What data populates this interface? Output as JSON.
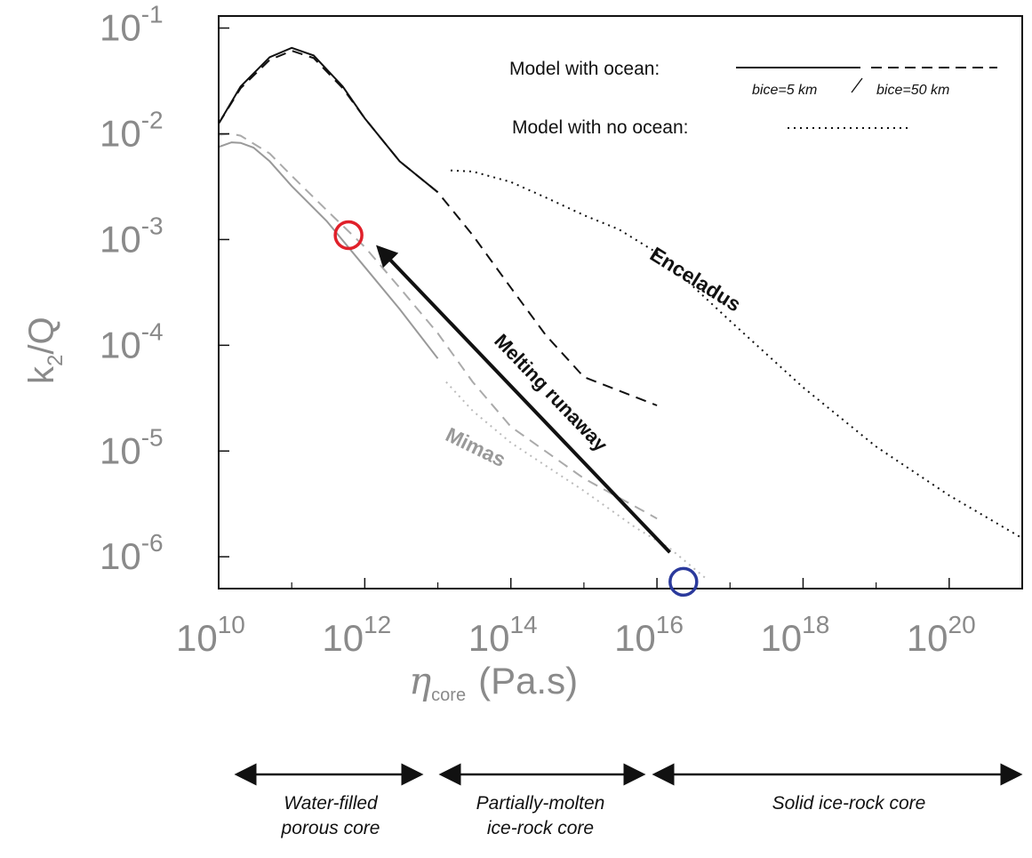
{
  "chart_data": {
    "type": "line",
    "x_scale": "log",
    "y_scale": "log",
    "xlim": [
      10000000000.0,
      1e+21
    ],
    "ylim": [
      5e-07,
      0.13
    ],
    "x_ticks": [
      {
        "value": 10000000000.0,
        "base": "10",
        "exp": "10"
      },
      {
        "value": 1000000000000.0,
        "base": "10",
        "exp": "12"
      },
      {
        "value": 100000000000000.0,
        "base": "10",
        "exp": "14"
      },
      {
        "value": 1e+16,
        "base": "10",
        "exp": "16"
      },
      {
        "value": 1e+18,
        "base": "10",
        "exp": "18"
      },
      {
        "value": 1e+20,
        "base": "10",
        "exp": "20"
      }
    ],
    "y_ticks": [
      {
        "value": 0.1,
        "base": "10",
        "exp": "-1"
      },
      {
        "value": 0.01,
        "base": "10",
        "exp": "-2"
      },
      {
        "value": 0.001,
        "base": "10",
        "exp": "-3"
      },
      {
        "value": 0.0001,
        "base": "10",
        "exp": "-4"
      },
      {
        "value": 1e-05,
        "base": "10",
        "exp": "-5"
      },
      {
        "value": 1e-06,
        "base": "10",
        "exp": "-6"
      }
    ],
    "xlabel": {
      "symbol": "η",
      "sub": "core",
      "unit": "(Pa.s)"
    },
    "ylabel": {
      "main": "k",
      "sub": "2",
      "rest": "/Q"
    },
    "grid": false,
    "legend": {
      "ocean_label": "Model with ocean:",
      "ice5_label": "bice=5 km",
      "ice50_label": "bice=50 km",
      "no_ocean_label": "Model with  no ocean:"
    },
    "series": [
      {
        "name": "Enceladus ocean bice=5 km",
        "color": "#111111",
        "dash": "solid",
        "points": [
          [
            10000000000.0,
            0.0125
          ],
          [
            20000000000.0,
            0.028
          ],
          [
            50000000000.0,
            0.053
          ],
          [
            100000000000.0,
            0.065
          ],
          [
            200000000000.0,
            0.055
          ],
          [
            500000000000.0,
            0.028
          ],
          [
            1000000000000.0,
            0.014
          ],
          [
            3000000000000.0,
            0.0055
          ],
          [
            10000000000000.0,
            0.0028
          ]
        ]
      },
      {
        "name": "Enceladus ocean bice=50 km",
        "color": "#111111",
        "dash": "dashed",
        "points": [
          [
            10000000000.0,
            0.0125
          ],
          [
            20000000000.0,
            0.027
          ],
          [
            50000000000.0,
            0.05
          ],
          [
            100000000000.0,
            0.061
          ],
          [
            200000000000.0,
            0.052
          ],
          [
            500000000000.0,
            0.027
          ],
          [
            1000000000000.0,
            0.014
          ],
          [
            3000000000000.0,
            0.0055
          ],
          [
            10000000000000.0,
            0.0028
          ],
          [
            30000000000000.0,
            0.0011
          ],
          [
            100000000000000.0,
            0.00035
          ],
          [
            300000000000000.0,
            0.000125
          ],
          [
            1000000000000000.0,
            5e-05
          ],
          [
            1e+16,
            2.7e-05
          ]
        ]
      },
      {
        "name": "Enceladus no ocean",
        "color": "#111111",
        "dash": "dotted",
        "points": [
          [
            15000000000000.0,
            0.0045
          ],
          [
            30000000000000.0,
            0.0044
          ],
          [
            100000000000000.0,
            0.0035
          ],
          [
            300000000000000.0,
            0.0025
          ],
          [
            1000000000000000.0,
            0.0017
          ],
          [
            3000000000000000.0,
            0.00125
          ],
          [
            1e+16,
            0.00075
          ],
          [
            3e+16,
            0.00037
          ],
          [
            1e+17,
            0.00017
          ],
          [
            1e+18,
            4e-05
          ],
          [
            1e+19,
            1.1e-05
          ],
          [
            1e+20,
            3.8e-06
          ],
          [
            1e+21,
            1.5e-06
          ]
        ]
      },
      {
        "name": "Mimas ocean bice=5 km",
        "color": "#999999",
        "dash": "solid",
        "points": [
          [
            10000000000.0,
            0.0075
          ],
          [
            15000000000.0,
            0.0083
          ],
          [
            20000000000.0,
            0.0082
          ],
          [
            30000000000.0,
            0.0074
          ],
          [
            50000000000.0,
            0.0055
          ],
          [
            100000000000.0,
            0.0032
          ],
          [
            300000000000.0,
            0.0015
          ],
          [
            1000000000000.0,
            0.00055
          ],
          [
            3000000000000.0,
            0.00022
          ],
          [
            10000000000000.0,
            7.5e-05
          ]
        ]
      },
      {
        "name": "Mimas ocean bice=50 km",
        "color": "#aaaaaa",
        "dash": "dashed",
        "points": [
          [
            10000000000.0,
            0.0098
          ],
          [
            15000000000.0,
            0.01
          ],
          [
            20000000000.0,
            0.0096
          ],
          [
            50000000000.0,
            0.0065
          ],
          [
            100000000000.0,
            0.004
          ],
          [
            300000000000.0,
            0.0019
          ],
          [
            1000000000000.0,
            0.00085
          ],
          [
            3000000000000.0,
            0.00035
          ],
          [
            10000000000000.0,
            0.00013
          ],
          [
            30000000000000.0,
            4.5e-05
          ],
          [
            100000000000000.0,
            1.7e-05
          ],
          [
            1000000000000000.0,
            5.5e-06
          ],
          [
            1e+16,
            2.3e-06
          ]
        ]
      },
      {
        "name": "Mimas no ocean",
        "color": "#bbbbbb",
        "dash": "dotted",
        "points": [
          [
            13000000000000.0,
            4.5e-05
          ],
          [
            30000000000000.0,
            2.4e-05
          ],
          [
            100000000000000.0,
            1.2e-05
          ],
          [
            1000000000000000.0,
            4.2e-06
          ],
          [
            5000000000000000.0,
            1.9e-06
          ],
          [
            1.5e+16,
            1.2e-06
          ],
          [
            5e+16,
            6e-07
          ]
        ]
      }
    ],
    "annotations": {
      "enceladus_label": "Enceladus",
      "mimas_label": "Mimas",
      "runaway_label": "Melting runaway",
      "runaway_from": [
        1.5e+16,
        1.1e-06
      ],
      "runaway_to": [
        1800000000000.0,
        0.00075
      ],
      "red_circle": [
        600000000000.0,
        0.0011
      ],
      "blue_circle": [
        2.3e+16,
        5.8e-07
      ],
      "red_color": "#e0202a",
      "blue_color": "#2b3a9c"
    },
    "regions": [
      {
        "label_line1": "Water-filled",
        "label_line2": "porous core",
        "from": 10000000000.0,
        "to": 15000000000000.0
      },
      {
        "label_line1": "Partially-molten",
        "label_line2": "ice-rock core",
        "from": 15000000000000.0,
        "to": 1.5e+16
      },
      {
        "label_line1": "Solid ice-rock core",
        "label_line2": "",
        "from": 1.5e+16,
        "to": 1e+21
      }
    ]
  }
}
